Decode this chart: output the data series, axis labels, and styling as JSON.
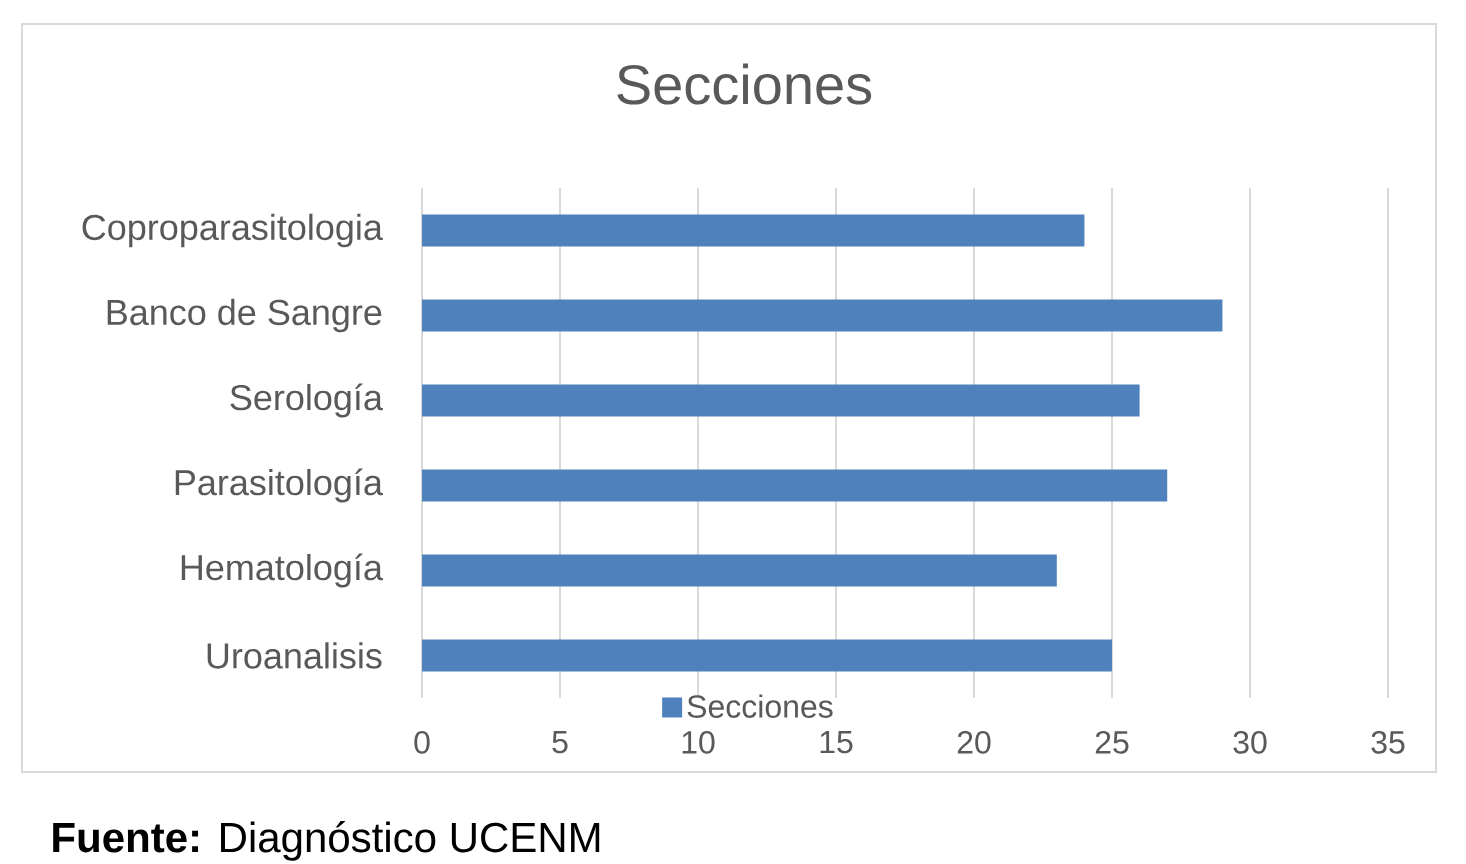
{
  "chart_data": {
    "type": "bar",
    "orientation": "horizontal",
    "title": "Secciones",
    "categories": [
      "Coproparasitologia",
      "Banco de Sangre",
      "Serología",
      "Parasitología",
      "Hematología",
      "Uroanalisis"
    ],
    "series": [
      {
        "name": "Secciones",
        "color": "#4f81bd",
        "values": [
          24,
          29,
          26,
          27,
          23,
          25
        ]
      }
    ],
    "xlim": [
      0,
      35
    ],
    "xticks": [
      0,
      5,
      10,
      15,
      20,
      25,
      30,
      35
    ],
    "grid": "x",
    "legend": "bottom",
    "annotations": [
      "**Fuente:** Diagnóstico UCENM"
    ]
  }
}
